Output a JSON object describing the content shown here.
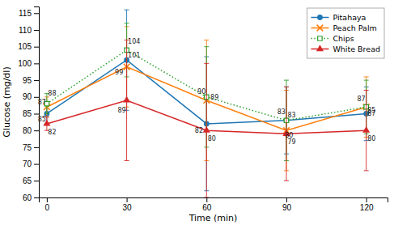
{
  "chart_data": {
    "type": "line",
    "xlabel": "Time (min)",
    "ylabel": "Glucose (mg/dl)",
    "x": [
      0,
      30,
      60,
      90,
      120
    ],
    "series": [
      {
        "name": "Pitahaya",
        "values": [
          85,
          101,
          82,
          83,
          85
        ],
        "errors": [
          3,
          15,
          20,
          10,
          8
        ],
        "marker": "circle",
        "line_style": "solid"
      },
      {
        "name": "Peach Palm",
        "values": [
          87,
          99,
          89,
          80,
          87
        ],
        "errors": [
          3,
          12,
          18,
          12,
          9
        ],
        "marker": "x",
        "line_style": "solid"
      },
      {
        "name": "Chips",
        "values": [
          88,
          104,
          90,
          83,
          87
        ],
        "errors": [
          3,
          8,
          15,
          12,
          8
        ],
        "marker": "square",
        "line_style": "dotted"
      },
      {
        "name": "White Bread",
        "values": [
          82,
          89,
          80,
          79,
          80
        ],
        "errors": [
          2,
          18,
          20,
          14,
          12
        ],
        "marker": "triangle",
        "line_style": "solid"
      }
    ],
    "xlim": [
      -3,
      128
    ],
    "ylim": [
      60,
      117
    ],
    "xticks": [
      0,
      30,
      60,
      90,
      120
    ],
    "yticks": [
      60,
      65,
      70,
      75,
      80,
      85,
      90,
      95,
      100,
      105,
      110,
      115
    ],
    "grid": false,
    "legend": "upper right",
    "data_labels": true
  }
}
